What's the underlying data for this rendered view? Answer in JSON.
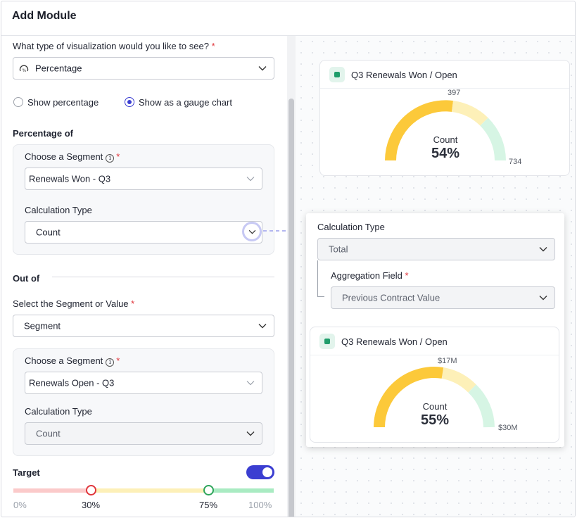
{
  "header": {
    "title": "Add Module"
  },
  "form": {
    "viz_question": "What type of visualization would you like to see?",
    "required_mark": "*",
    "viz_type": "Percentage",
    "radio_show_percentage": "Show percentage",
    "radio_show_gauge": "Show as a gauge chart",
    "percentage_of_heading": "Percentage of",
    "segment_label": "Choose a Segment",
    "segment_1_value": "Renewals Won - Q3",
    "calc_type_label": "Calculation Type",
    "calc_type_1_value": "Count",
    "out_of_heading": "Out of",
    "select_segment_or_value_label": "Select the Segment or Value",
    "segment_or_value": "Segment",
    "segment_2_value": "Renewals Open - Q3",
    "calc_type_2_value": "Count",
    "target_label": "Target",
    "target_enabled": true,
    "target_scale": {
      "min_label": "0%",
      "low_label": "30%",
      "high_label": "75%",
      "max_label": "100%",
      "low": 30,
      "high": 75
    }
  },
  "preview_1": {
    "title": "Q3 Renewals Won / Open",
    "won_label": "397",
    "total_label": "734",
    "count_label": "Count",
    "percent": "54%"
  },
  "popout": {
    "calc_type_label": "Calculation Type",
    "calc_type_value": "Total",
    "agg_field_label": "Aggregation Field",
    "agg_field_value": "Previous Contract Value",
    "preview_2": {
      "title": "Q3 Renewals Won / Open",
      "won_label": "$17M",
      "total_label": "$30M",
      "count_label": "Count",
      "percent": "55%"
    }
  },
  "colors": {
    "accent": "#3b3ed1",
    "gauge_fill": "#fcc93a",
    "gauge_mid": "#fdf0b8",
    "gauge_end": "#d6f5e4",
    "required": "#e0353b"
  }
}
